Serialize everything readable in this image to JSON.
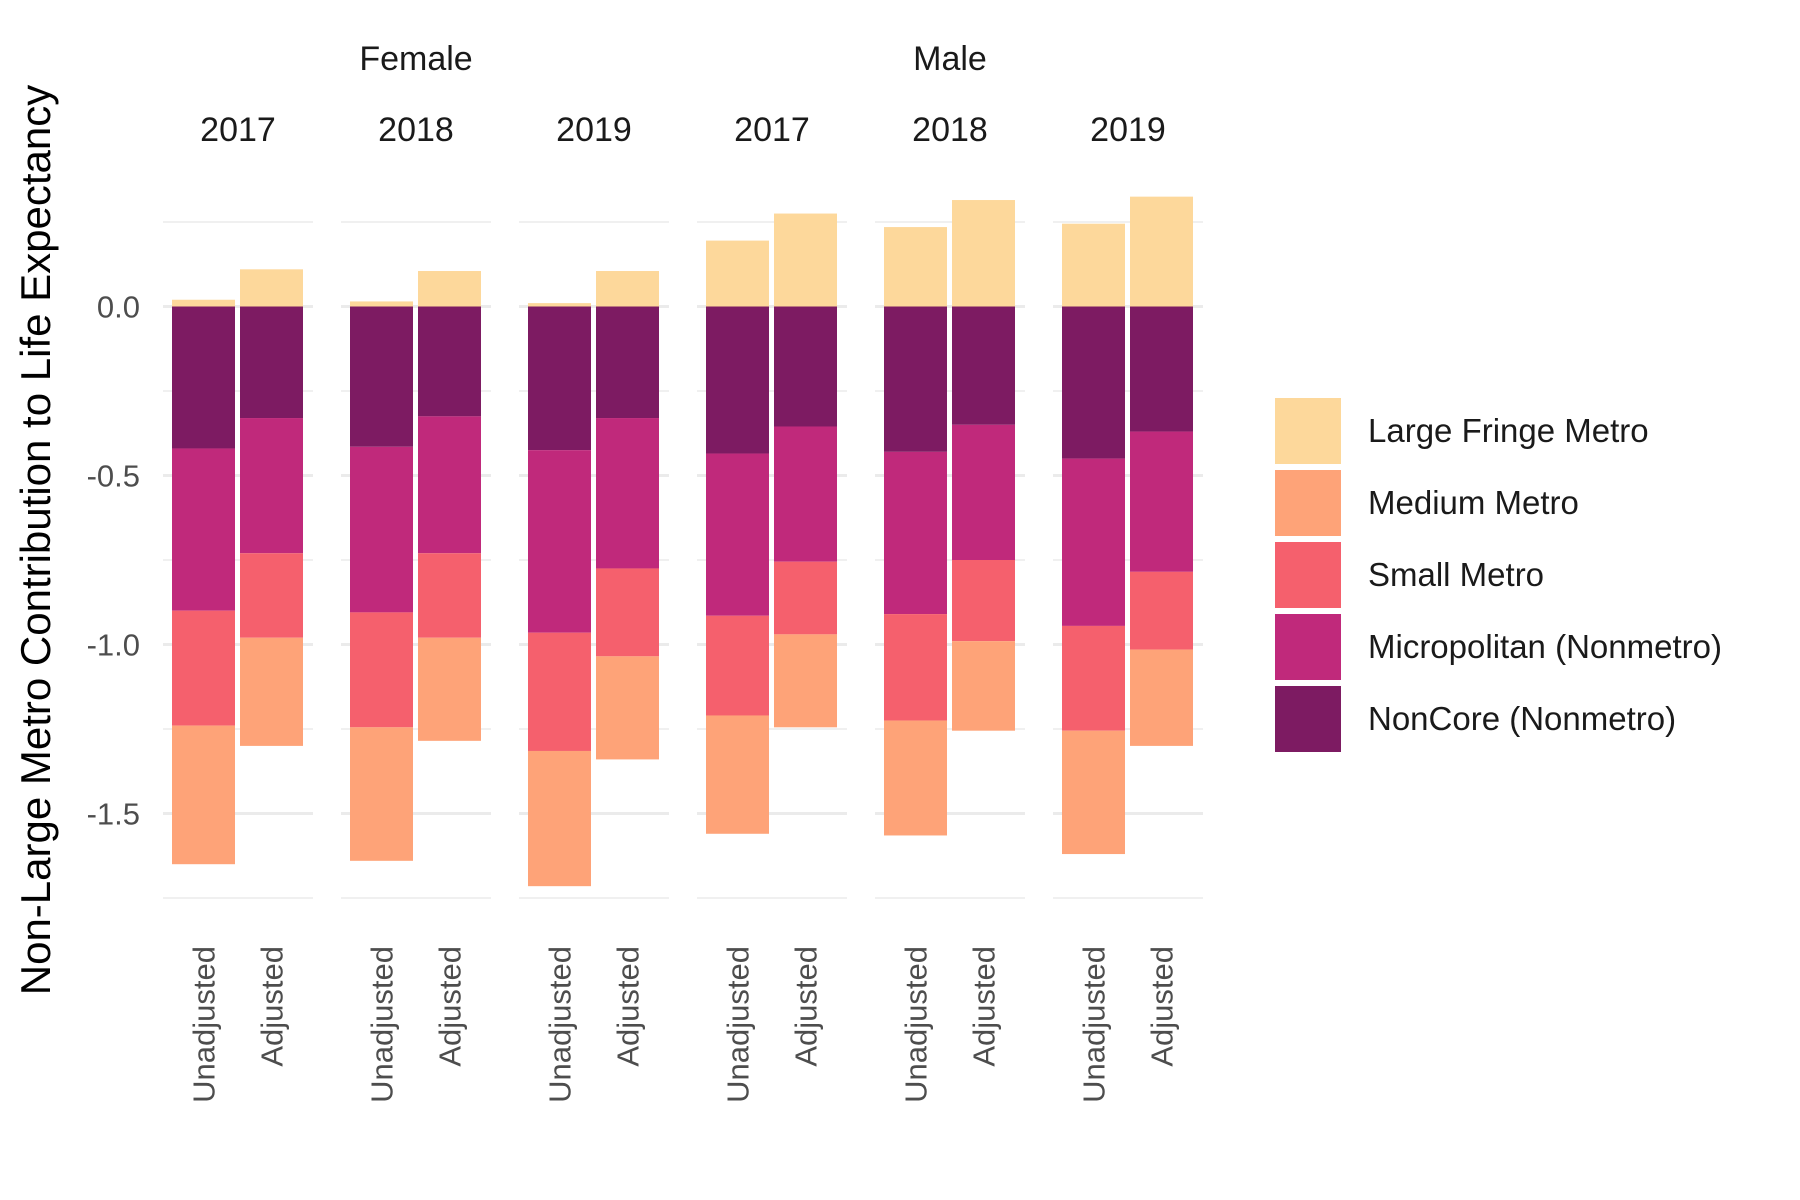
{
  "chart_data": {
    "type": "bar",
    "stacked": true,
    "ylabel": "Non-Large Metro Contribution to Life Expectancy",
    "ylim": [
      -1.75,
      0.25
    ],
    "yticks": [
      0.0,
      -0.5,
      -1.0,
      -1.5
    ],
    "ytick_labels": [
      "0.0",
      "-0.5",
      "-1.0",
      "-1.5"
    ],
    "sexes": [
      "Female",
      "Male"
    ],
    "years": [
      "2017",
      "2018",
      "2019"
    ],
    "categories": [
      "Unadjusted",
      "Adjusted"
    ],
    "legend": {
      "position": "right",
      "entries": [
        "Large Fringe Metro",
        "Medium Metro",
        "Small Metro",
        "Micropolitan (Nonmetro)",
        "NonCore (Nonmetro)"
      ]
    },
    "colors": {
      "Large Fringe Metro": "#fdd89b",
      "Medium Metro": "#fea378",
      "Small Metro": "#f5606d",
      "Micropolitan (Nonmetro)": "#c0297b",
      "NonCore (Nonmetro)": "#7d1b62"
    },
    "panels": [
      {
        "sex": "Female",
        "year": "2017",
        "bars": [
          {
            "category": "Unadjusted",
            "values": {
              "Large Fringe Metro": 0.02,
              "NonCore (Nonmetro)": -0.42,
              "Micropolitan (Nonmetro)": -0.48,
              "Small Metro": -0.34,
              "Medium Metro": -0.41
            }
          },
          {
            "category": "Adjusted",
            "values": {
              "Large Fringe Metro": 0.11,
              "NonCore (Nonmetro)": -0.33,
              "Micropolitan (Nonmetro)": -0.4,
              "Small Metro": -0.25,
              "Medium Metro": -0.32
            }
          }
        ]
      },
      {
        "sex": "Female",
        "year": "2018",
        "bars": [
          {
            "category": "Unadjusted",
            "values": {
              "Large Fringe Metro": 0.015,
              "NonCore (Nonmetro)": -0.415,
              "Micropolitan (Nonmetro)": -0.49,
              "Small Metro": -0.34,
              "Medium Metro": -0.395
            }
          },
          {
            "category": "Adjusted",
            "values": {
              "Large Fringe Metro": 0.105,
              "NonCore (Nonmetro)": -0.325,
              "Micropolitan (Nonmetro)": -0.405,
              "Small Metro": -0.25,
              "Medium Metro": -0.305
            }
          }
        ]
      },
      {
        "sex": "Female",
        "year": "2019",
        "bars": [
          {
            "category": "Unadjusted",
            "values": {
              "Large Fringe Metro": 0.01,
              "NonCore (Nonmetro)": -0.425,
              "Micropolitan (Nonmetro)": -0.54,
              "Small Metro": -0.35,
              "Medium Metro": -0.4
            }
          },
          {
            "category": "Adjusted",
            "values": {
              "Large Fringe Metro": 0.105,
              "NonCore (Nonmetro)": -0.33,
              "Micropolitan (Nonmetro)": -0.445,
              "Small Metro": -0.26,
              "Medium Metro": -0.305
            }
          }
        ]
      },
      {
        "sex": "Male",
        "year": "2017",
        "bars": [
          {
            "category": "Unadjusted",
            "values": {
              "Large Fringe Metro": 0.195,
              "NonCore (Nonmetro)": -0.435,
              "Micropolitan (Nonmetro)": -0.48,
              "Small Metro": -0.295,
              "Medium Metro": -0.35
            }
          },
          {
            "category": "Adjusted",
            "values": {
              "Large Fringe Metro": 0.275,
              "NonCore (Nonmetro)": -0.355,
              "Micropolitan (Nonmetro)": -0.4,
              "Small Metro": -0.215,
              "Medium Metro": -0.275
            }
          }
        ]
      },
      {
        "sex": "Male",
        "year": "2018",
        "bars": [
          {
            "category": "Unadjusted",
            "values": {
              "Large Fringe Metro": 0.235,
              "NonCore (Nonmetro)": -0.43,
              "Micropolitan (Nonmetro)": -0.48,
              "Small Metro": -0.315,
              "Medium Metro": -0.34
            }
          },
          {
            "category": "Adjusted",
            "values": {
              "Large Fringe Metro": 0.315,
              "NonCore (Nonmetro)": -0.35,
              "Micropolitan (Nonmetro)": -0.4,
              "Small Metro": -0.24,
              "Medium Metro": -0.265
            }
          }
        ]
      },
      {
        "sex": "Male",
        "year": "2019",
        "bars": [
          {
            "category": "Unadjusted",
            "values": {
              "Large Fringe Metro": 0.245,
              "NonCore (Nonmetro)": -0.45,
              "Micropolitan (Nonmetro)": -0.495,
              "Small Metro": -0.31,
              "Medium Metro": -0.365
            }
          },
          {
            "category": "Adjusted",
            "values": {
              "Large Fringe Metro": 0.325,
              "NonCore (Nonmetro)": -0.37,
              "Micropolitan (Nonmetro)": -0.415,
              "Small Metro": -0.23,
              "Medium Metro": -0.285
            }
          }
        ]
      }
    ]
  }
}
